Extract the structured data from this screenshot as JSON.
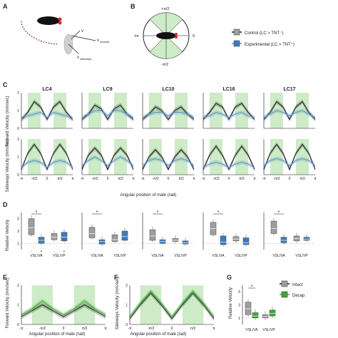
{
  "panels": {
    "a": "A",
    "b": "B",
    "c": "C",
    "d": "D",
    "e": "E",
    "f": "F",
    "g": "G"
  },
  "panel_a": {
    "v_label": "v",
    "v_forward": "v",
    "v_forward_sub": "forward",
    "v_sideways": "v",
    "v_sideways_sub": "sideways"
  },
  "panel_b": {
    "top": "+π/2",
    "left": "±π",
    "right": "0",
    "bottom": "-π/2"
  },
  "legend_top": [
    {
      "label": "Control (LC > TNT⁻)",
      "color": "#1a1a1a"
    },
    {
      "label": "Experimental (LC > TNT⁺)",
      "color": "#5b95c8"
    }
  ],
  "legend_g": [
    {
      "label": "Intact",
      "color": "#1a1a1a"
    },
    {
      "label": "Decap",
      "color": "#3aaa35"
    }
  ],
  "colors": {
    "control": "#1a1a1a",
    "experimental": "#5b95c8",
    "green_band": "#cdebc6",
    "intact_box": "#9e9e9e",
    "exp_box": "#3b7bbd",
    "decap": "#3aaa35"
  },
  "chart_data": [
    {
      "panel": "C",
      "type": "line",
      "ylabel_top": "Forward Velocity (mm/sec)",
      "ylabel_bottom": "Sideways Velocity (mm/sec)",
      "xlabel": "Angular position of male (rad)",
      "xticks": [
        "-π",
        "-π/2",
        "0",
        "π/2",
        "π"
      ],
      "yticks": [
        "0",
        "1",
        "2"
      ],
      "ylim": [
        0,
        2
      ],
      "titles": [
        "LC4",
        "LC9",
        "LC10",
        "LC16",
        "LC17"
      ],
      "x": [
        -3.14,
        -2.36,
        -1.57,
        -0.79,
        0,
        0.79,
        1.57,
        2.36,
        3.14
      ],
      "forward": [
        {
          "control": [
            0.5,
            0.9,
            1.5,
            1.2,
            0.5,
            1.2,
            1.5,
            0.9,
            0.5
          ],
          "experimental": [
            0.5,
            0.7,
            0.8,
            0.9,
            0.6,
            0.9,
            0.8,
            0.7,
            0.5
          ]
        },
        {
          "control": [
            0.5,
            0.8,
            1.3,
            1.1,
            0.5,
            1.1,
            1.3,
            0.8,
            0.5
          ],
          "experimental": [
            0.6,
            0.8,
            1.0,
            1.0,
            0.7,
            1.0,
            1.0,
            0.8,
            0.6
          ]
        },
        {
          "control": [
            0.5,
            0.8,
            1.2,
            1.0,
            0.5,
            1.0,
            1.2,
            0.8,
            0.5
          ],
          "experimental": [
            0.6,
            0.8,
            0.9,
            0.9,
            0.7,
            0.9,
            0.9,
            0.8,
            0.6
          ]
        },
        {
          "control": [
            0.5,
            0.9,
            1.4,
            1.2,
            0.5,
            1.2,
            1.4,
            0.9,
            0.5
          ],
          "experimental": [
            0.6,
            0.7,
            0.9,
            0.8,
            0.6,
            0.8,
            0.9,
            0.7,
            0.6
          ]
        },
        {
          "control": [
            0.5,
            0.9,
            1.5,
            1.2,
            0.5,
            1.2,
            1.5,
            0.9,
            0.5
          ],
          "experimental": [
            0.6,
            0.8,
            1.0,
            0.9,
            0.7,
            0.9,
            1.0,
            0.8,
            0.6
          ]
        }
      ],
      "sideways": [
        {
          "control": [
            0.3,
            1.2,
            1.7,
            1.2,
            0.3,
            1.2,
            1.7,
            1.2,
            0.3
          ],
          "experimental": [
            0.4,
            0.7,
            0.8,
            0.7,
            0.4,
            0.7,
            0.8,
            0.7,
            0.4
          ]
        },
        {
          "control": [
            0.3,
            1.1,
            1.5,
            1.1,
            0.3,
            1.1,
            1.5,
            1.1,
            0.3
          ],
          "experimental": [
            0.5,
            0.8,
            1.0,
            0.8,
            0.5,
            0.8,
            1.0,
            0.8,
            0.5
          ]
        },
        {
          "control": [
            0.3,
            1.0,
            1.4,
            1.0,
            0.3,
            1.0,
            1.4,
            1.0,
            0.3
          ],
          "experimental": [
            0.5,
            0.8,
            0.9,
            0.8,
            0.5,
            0.8,
            0.9,
            0.8,
            0.5
          ]
        },
        {
          "control": [
            0.3,
            1.1,
            1.6,
            1.1,
            0.3,
            1.1,
            1.6,
            1.1,
            0.3
          ],
          "experimental": [
            0.4,
            0.6,
            0.7,
            0.6,
            0.4,
            0.6,
            0.7,
            0.6,
            0.4
          ]
        },
        {
          "control": [
            0.3,
            1.2,
            1.7,
            1.2,
            0.3,
            1.2,
            1.7,
            1.2,
            0.3
          ],
          "experimental": [
            0.5,
            0.8,
            0.9,
            0.8,
            0.5,
            0.8,
            0.9,
            0.8,
            0.5
          ]
        }
      ]
    },
    {
      "panel": "D",
      "type": "box",
      "ylabel": "Relative Velocity",
      "yticks": [
        "1",
        "3",
        "5"
      ],
      "ylim": [
        0,
        6
      ],
      "xlabels": [
        "V",
        "V"
      ],
      "groups": [
        {
          "name": "LC4",
          "control": [
            2.4,
            3.5,
            5.0
          ],
          "experimental": [
            1.0,
            1.5,
            2.0
          ],
          "control2": [
            1.6,
            2.0,
            2.6
          ],
          "experimental2": [
            1.4,
            2.0,
            2.8
          ]
        },
        {
          "name": "LC9",
          "control": [
            1.9,
            2.6,
            3.6
          ],
          "experimental": [
            0.9,
            1.3,
            1.6
          ],
          "control2": [
            1.3,
            1.6,
            2.4
          ],
          "experimental2": [
            1.5,
            2.1,
            3.0
          ]
        },
        {
          "name": "LC10",
          "control": [
            1.5,
            2.2,
            3.2
          ],
          "experimental": [
            1.0,
            1.3,
            1.6
          ],
          "control2": [
            1.3,
            1.5,
            1.8
          ],
          "experimental2": [
            0.9,
            1.1,
            1.4
          ]
        },
        {
          "name": "LC16",
          "control": [
            2.4,
            3.4,
            4.4
          ],
          "experimental": [
            0.8,
            1.2,
            2.2
          ],
          "control2": [
            1.4,
            1.7,
            2.1
          ],
          "experimental2": [
            0.8,
            1.1,
            1.9
          ]
        },
        {
          "name": "LC17",
          "control": [
            2.6,
            3.4,
            4.6
          ],
          "experimental": [
            1.1,
            1.5,
            2.0
          ],
          "control2": [
            1.4,
            1.8,
            2.2
          ],
          "experimental2": [
            1.5,
            1.7,
            2.0
          ]
        }
      ],
      "minus": "-",
      "plus": "+",
      "star": "*"
    },
    {
      "panel": "E",
      "type": "line",
      "ylabel": "Forward Velocity (mm/sec)",
      "xlabel": "Angular position of male (rad)",
      "xticks": [
        "-π",
        "-π/2",
        "0",
        "π/2",
        "π"
      ],
      "yticks": [
        "0",
        "1",
        "2"
      ],
      "ylim": [
        0,
        2
      ],
      "x": [
        -3.14,
        -2.36,
        -1.57,
        -0.79,
        0,
        0.79,
        1.57,
        2.36,
        3.14
      ],
      "intact": [
        0.4,
        0.7,
        1.0,
        0.7,
        0.4,
        0.7,
        1.0,
        0.7,
        0.4
      ],
      "decap": [
        0.5,
        0.8,
        1.2,
        0.8,
        0.5,
        0.8,
        1.2,
        0.8,
        0.5
      ]
    },
    {
      "panel": "F",
      "type": "line",
      "ylabel": "Sideways Velocity (mm/sec)",
      "xlabel": "Angular position of male (rad)",
      "xticks": [
        "-π",
        "-π/2",
        "0",
        "π/2",
        "π"
      ],
      "yticks": [
        "0",
        "1",
        "2"
      ],
      "ylim": [
        0,
        2
      ],
      "x": [
        -3.14,
        -2.36,
        -1.57,
        -0.79,
        0,
        0.79,
        1.57,
        2.36,
        3.14
      ],
      "intact": [
        0.3,
        1.0,
        1.6,
        1.0,
        0.3,
        1.0,
        1.6,
        1.0,
        0.3
      ],
      "decap": [
        0.4,
        1.1,
        1.7,
        1.1,
        0.4,
        1.1,
        1.7,
        1.1,
        0.4
      ]
    },
    {
      "panel": "G",
      "type": "box",
      "ylabel": "Relative Velocity",
      "yticks": [
        "1",
        "3",
        "5"
      ],
      "ylim": [
        0,
        6
      ],
      "intact": [
        1.5,
        2.4,
        3.4
      ],
      "decap": [
        1.0,
        1.3,
        1.8
      ],
      "intact2": [
        1.0,
        1.2,
        1.5
      ],
      "decap2": [
        1.3,
        1.7,
        2.2
      ],
      "xlabels": [
        "V",
        "V"
      ],
      "star": "*"
    }
  ],
  "text": {
    "vrel": "V",
    "sub_sl": "SL",
    "sub_a": "A",
    "sub_p": "P",
    "slash": "/",
    "label_c": "Angular position of male (rad)",
    "label_e": "Angular position of male (rad)",
    "label_f": "Angular position of male (rad)"
  }
}
